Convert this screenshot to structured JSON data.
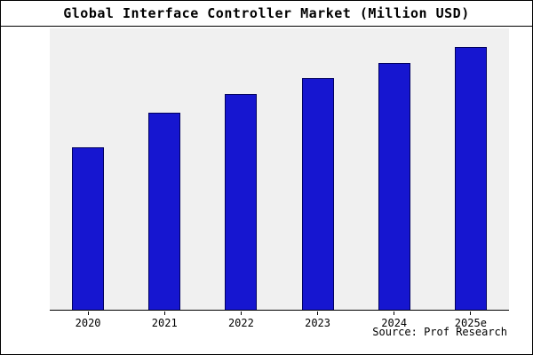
{
  "chart_data": {
    "type": "bar",
    "title": "Global Interface Controller Market (Million USD)",
    "categories": [
      "2020",
      "2021",
      "2022",
      "2023",
      "2024",
      "2025e"
    ],
    "values": [
      62,
      75,
      82,
      88,
      94,
      100
    ],
    "ylim": [
      0,
      107
    ],
    "xlabel": "",
    "ylabel": "",
    "grid": false,
    "legend": false,
    "y_axis_tick_labels_visible": false,
    "note": "No y-axis scale shown in chart; values estimated relative to tallest bar (2025e) = 100",
    "colors": {
      "bar_fill": "#1616d0",
      "bar_edge": "#000060",
      "plot_bg": "#f0f0f0",
      "frame_border": "#000000"
    }
  },
  "source": {
    "text": "Source: Prof Research"
  }
}
